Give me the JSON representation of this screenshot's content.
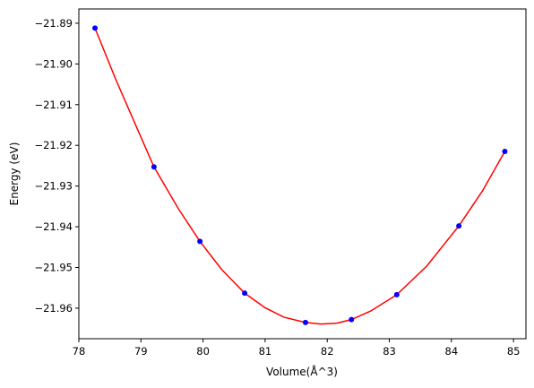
{
  "chart_data": {
    "type": "scatter",
    "title": "",
    "xlabel": "Volume(Å^3)",
    "ylabel": "Energy (eV)",
    "xlim": [
      78.0,
      85.2
    ],
    "ylim": [
      -21.9675,
      -21.8865
    ],
    "xticks": [
      78,
      79,
      80,
      81,
      82,
      83,
      84,
      85
    ],
    "yticks": [
      -21.89,
      -21.9,
      -21.91,
      -21.92,
      -21.93,
      -21.94,
      -21.95,
      -21.96
    ],
    "xtick_labels": [
      "78",
      "79",
      "80",
      "81",
      "82",
      "83",
      "84",
      "85"
    ],
    "ytick_labels": [
      "−21.89",
      "−21.90",
      "−21.91",
      "−21.92",
      "−21.93",
      "−21.94",
      "−21.95",
      "−21.96"
    ],
    "grid": false,
    "series": [
      {
        "kind": "points",
        "color": "#0000ff",
        "points": [
          {
            "x": 78.26,
            "y": -21.8912
          },
          {
            "x": 79.21,
            "y": -21.9253
          },
          {
            "x": 79.95,
            "y": -21.9436
          },
          {
            "x": 80.67,
            "y": -21.9563
          },
          {
            "x": 81.65,
            "y": -21.9635
          },
          {
            "x": 82.39,
            "y": -21.9628
          },
          {
            "x": 83.12,
            "y": -21.9567
          },
          {
            "x": 84.12,
            "y": -21.9398
          },
          {
            "x": 84.86,
            "y": -21.9215
          }
        ]
      },
      {
        "kind": "fit-curve",
        "color": "#ff0000",
        "points": [
          {
            "x": 78.26,
            "y": -21.8912
          },
          {
            "x": 78.6,
            "y": -21.904
          },
          {
            "x": 79.0,
            "y": -21.918
          },
          {
            "x": 79.21,
            "y": -21.9253
          },
          {
            "x": 79.6,
            "y": -21.9355
          },
          {
            "x": 79.95,
            "y": -21.9436
          },
          {
            "x": 80.3,
            "y": -21.9505
          },
          {
            "x": 80.67,
            "y": -21.9563
          },
          {
            "x": 81.0,
            "y": -21.9599
          },
          {
            "x": 81.3,
            "y": -21.9622
          },
          {
            "x": 81.65,
            "y": -21.9635
          },
          {
            "x": 81.9,
            "y": -21.9639
          },
          {
            "x": 82.15,
            "y": -21.9637
          },
          {
            "x": 82.39,
            "y": -21.9628
          },
          {
            "x": 82.7,
            "y": -21.9607
          },
          {
            "x": 83.12,
            "y": -21.9567
          },
          {
            "x": 83.6,
            "y": -21.9497
          },
          {
            "x": 84.12,
            "y": -21.9398
          },
          {
            "x": 84.5,
            "y": -21.9312
          },
          {
            "x": 84.86,
            "y": -21.9215
          }
        ]
      }
    ]
  }
}
